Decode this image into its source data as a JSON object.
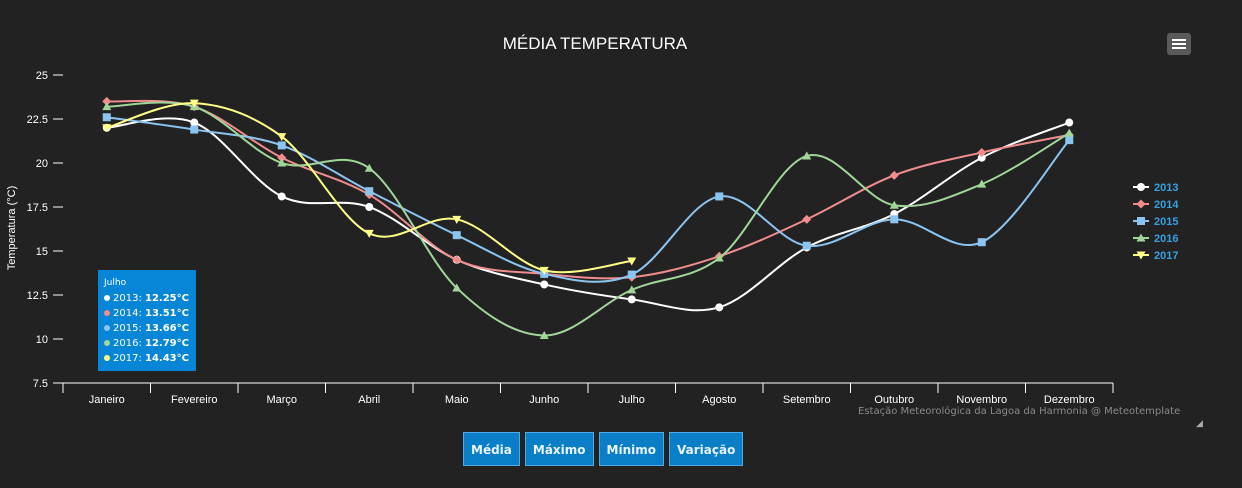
{
  "chart_data": {
    "type": "line",
    "title": "MÉDIA TEMPERATURA",
    "ylabel": "Temperatura (°C)",
    "xlabel": "",
    "ylim": [
      7.5,
      25
    ],
    "yticks": [
      "7.5",
      "10",
      "12.5",
      "15",
      "17.5",
      "20",
      "22.5",
      "25"
    ],
    "categories": [
      "Janeiro",
      "Fevereiro",
      "Março",
      "Abril",
      "Maio",
      "Junho",
      "Julho",
      "Agosto",
      "Setembro",
      "Outubro",
      "Novembro",
      "Dezembro"
    ],
    "legend_position": "right",
    "series": [
      {
        "name": "2013",
        "color": "#ffffff",
        "marker": "circle",
        "values": [
          22.0,
          22.3,
          18.1,
          17.5,
          14.5,
          13.1,
          12.25,
          11.8,
          15.2,
          17.1,
          20.3,
          22.3
        ]
      },
      {
        "name": "2014",
        "color": "#f08c8c",
        "marker": "diamond",
        "values": [
          23.5,
          23.2,
          20.3,
          18.2,
          14.5,
          13.7,
          13.51,
          14.7,
          16.8,
          19.3,
          20.6,
          21.6
        ]
      },
      {
        "name": "2015",
        "color": "#8cc4f0",
        "marker": "square",
        "values": [
          22.6,
          21.9,
          21.0,
          18.4,
          15.9,
          13.7,
          13.66,
          18.1,
          15.3,
          16.8,
          15.5,
          21.3
        ]
      },
      {
        "name": "2016",
        "color": "#a0d698",
        "marker": "triangle",
        "values": [
          23.2,
          23.2,
          20.0,
          19.7,
          12.9,
          10.2,
          12.79,
          14.6,
          20.4,
          17.6,
          18.8,
          21.7
        ]
      },
      {
        "name": "2017",
        "color": "#ffff88",
        "marker": "triangle-down",
        "values": [
          22.0,
          23.4,
          21.5,
          16.0,
          16.8,
          13.9,
          14.43,
          null,
          null,
          null,
          null,
          null
        ]
      }
    ]
  },
  "tooltip": {
    "title": "Julho",
    "rows": [
      {
        "label": "2013:",
        "value": "12.25°C",
        "color": "#ffffff"
      },
      {
        "label": "2014:",
        "value": "13.51°C",
        "color": "#f08c8c"
      },
      {
        "label": "2015:",
        "value": "13.66°C",
        "color": "#8cc4f0"
      },
      {
        "label": "2016:",
        "value": "12.79°C",
        "color": "#a0d698"
      },
      {
        "label": "2017:",
        "value": "14.43°C",
        "color": "#ffff88"
      }
    ]
  },
  "credits": "Estação Meteorológica da Lagoa da Harmonia @ Meteotemplate",
  "buttons": {
    "media": "Média",
    "maximo": "Máximo",
    "minimo": "Mínimo",
    "variacao": "Variação"
  },
  "colors": {
    "background": "#222222",
    "axis": "#ffffff",
    "legend_text": "#37a0e0",
    "button": "#0b7ec8",
    "tooltip": "#0785d6"
  }
}
